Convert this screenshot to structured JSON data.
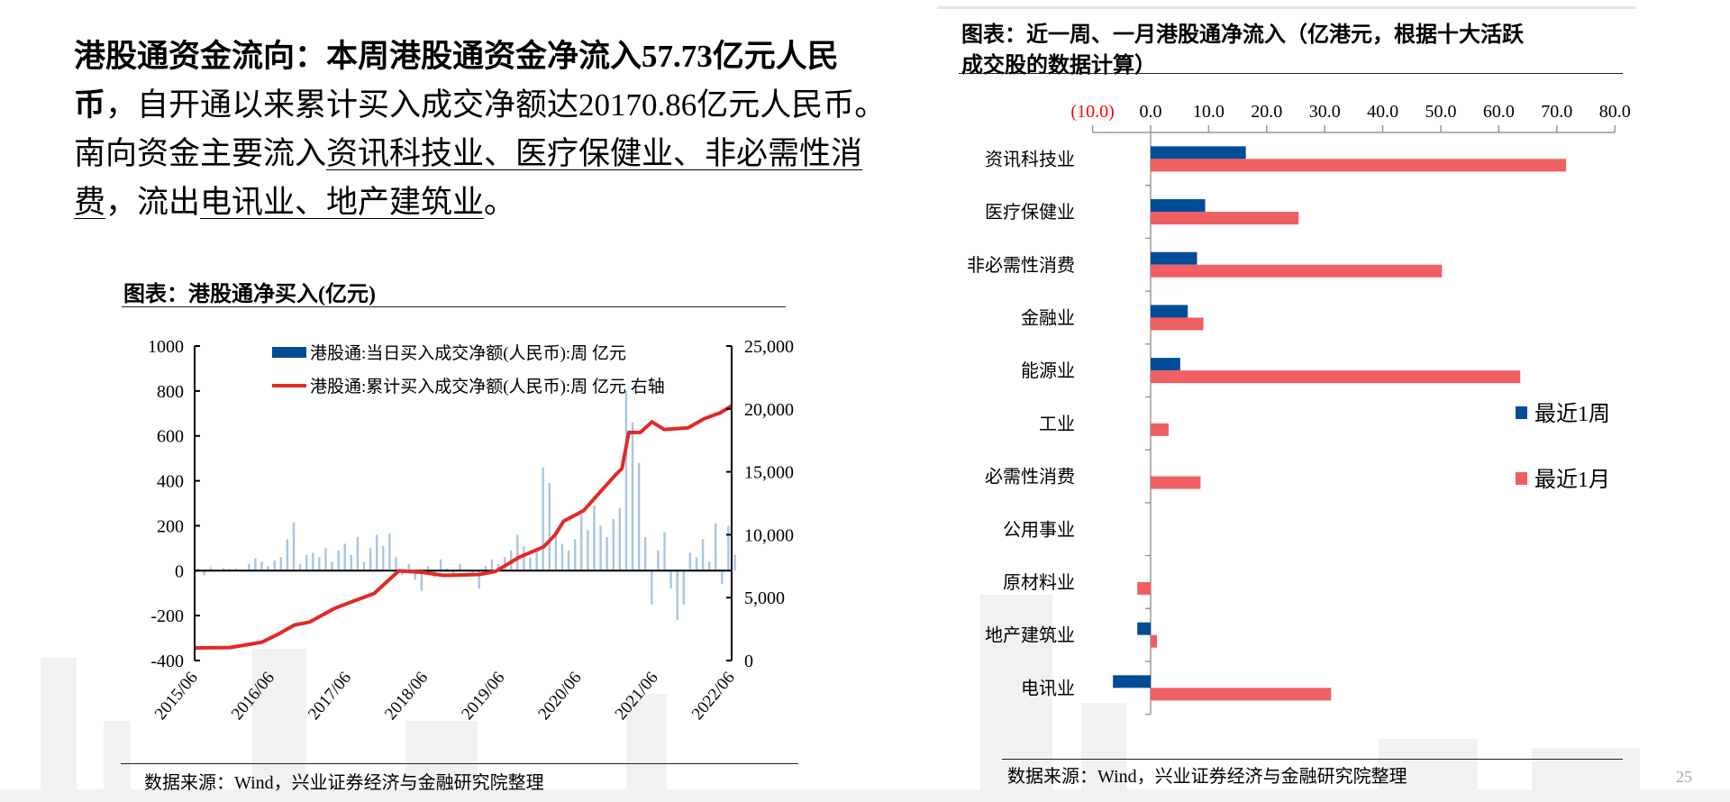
{
  "paragraph": {
    "lines": [
      [
        {
          "t": "港股通资金流向：本周港股通资金净流入57.73亿元人民",
          "style": "b"
        }
      ],
      [
        {
          "t": "币",
          "style": "b"
        },
        {
          "t": "，自开通以来累计买入成交净额达20170.86亿元人民币。",
          "style": ""
        }
      ],
      [
        {
          "t": "南向资金主要流入",
          "style": ""
        },
        {
          "t": "资讯科技业、医疗保健业、非必需性消",
          "style": "u"
        }
      ],
      [
        {
          "t": "费",
          "style": "u"
        },
        {
          "t": "，流出",
          "style": ""
        },
        {
          "t": "电讯业、地产建筑业",
          "style": "u"
        },
        {
          "t": "。",
          "style": ""
        }
      ]
    ]
  },
  "left_chart_title": "图表：港股通净买入(亿元)",
  "right_chart_title_line1": "图表：近一周、一月港股通净流入（亿港元，根据十大活跃",
  "right_chart_title_line2": "成交股的数据计算）",
  "source_left": "数据来源：Wind，兴业证券经济与金融研究院整理",
  "source_right": "数据来源：Wind，兴业证券经济与金融研究院整理",
  "page_number": "25",
  "colors": {
    "blue": "#004C97",
    "red": "#E12A27",
    "light_blue": "#A9C4E4",
    "pink": "#EF5F61",
    "negative_label": "#FF0000"
  },
  "chart_data": [
    {
      "type": "bar+line",
      "title": "",
      "x_tick_labels": [
        "2015/06",
        "2016/06",
        "2017/06",
        "2018/06",
        "2019/06",
        "2020/06",
        "2021/06",
        "2022/06"
      ],
      "ylim_left": [
        -400,
        1000
      ],
      "y_ticks_left": [
        "1000",
        "800",
        "600",
        "400",
        "200",
        "0",
        "-200",
        "-400"
      ],
      "ylim_right": [
        0,
        25000
      ],
      "y_ticks_right": [
        "25,000",
        "20,000",
        "15,000",
        "10,000",
        "5,000",
        "0"
      ],
      "legend_placement": "top",
      "series": [
        {
          "name": "港股通:当日买入成交净额(人民币):周 亿元",
          "type": "bar",
          "axis": "left",
          "x_start": "2015/07",
          "x_step": "month",
          "values": [
            10,
            -20,
            15,
            5,
            12,
            8,
            10,
            5,
            30,
            55,
            40,
            20,
            45,
            60,
            140,
            215,
            30,
            70,
            80,
            60,
            100,
            40,
            90,
            120,
            70,
            150,
            40,
            100,
            160,
            110,
            165,
            60,
            -20,
            30,
            -40,
            -90,
            20,
            -30,
            50,
            10,
            -20,
            30,
            5,
            -10,
            -80,
            20,
            50,
            30,
            60,
            90,
            160,
            110,
            60,
            90,
            460,
            390,
            180,
            120,
            90,
            140,
            250,
            180,
            290,
            200,
            150,
            230,
            280,
            800,
            660,
            480,
            150,
            -150,
            90,
            170,
            -80,
            -220,
            -150,
            80,
            60,
            140,
            40,
            210,
            -60,
            200,
            70
          ]
        },
        {
          "name": "港股通:累计买入成交净额(人民币):周 亿元 右轴",
          "type": "line",
          "axis": "right",
          "points": [
            [
              2015.5,
              1000
            ],
            [
              2015.96,
              1030
            ],
            [
              2016.38,
              1460
            ],
            [
              2016.59,
              2100
            ],
            [
              2016.8,
              2820
            ],
            [
              2017.0,
              3060
            ],
            [
              2017.32,
              4140
            ],
            [
              2017.63,
              4860
            ],
            [
              2017.84,
              5330
            ],
            [
              2018.16,
              7130
            ],
            [
              2018.47,
              7010
            ],
            [
              2018.74,
              6770
            ],
            [
              2019.21,
              6840
            ],
            [
              2019.42,
              7080
            ],
            [
              2019.73,
              8210
            ],
            [
              2020.05,
              9040
            ],
            [
              2020.2,
              10000
            ],
            [
              2020.31,
              11080
            ],
            [
              2020.57,
              11910
            ],
            [
              2020.78,
              13350
            ],
            [
              2020.99,
              14780
            ],
            [
              2021.07,
              15260
            ],
            [
              2021.16,
              18130
            ],
            [
              2021.31,
              18130
            ],
            [
              2021.46,
              18970
            ],
            [
              2021.62,
              18370
            ],
            [
              2021.93,
              18490
            ],
            [
              2022.14,
              19210
            ],
            [
              2022.35,
              19690
            ],
            [
              2022.5,
              20240
            ]
          ]
        }
      ]
    },
    {
      "type": "bar",
      "orientation": "horizontal",
      "title": "图表：近一周、一月港股通净流入（亿港元，根据十大活跃成交股的数据计算）",
      "categories": [
        "资讯科技业",
        "医疗保健业",
        "非必需性消费",
        "金融业",
        "能源业",
        "工业",
        "必需性消费",
        "公用事业",
        "原材料业",
        "地产建筑业",
        "电讯业"
      ],
      "xlim": [
        -10,
        80
      ],
      "x_tick_labels": [
        "(10.0)",
        "0.0",
        "10.0",
        "20.0",
        "30.0",
        "40.0",
        "50.0",
        "60.0",
        "70.0",
        "80.0"
      ],
      "legend_placement": "right",
      "series": [
        {
          "name": "最近1周",
          "values": [
            16.4,
            9.4,
            8.0,
            6.4,
            5.1,
            0,
            0,
            0,
            0,
            -2.3,
            -6.5
          ]
        },
        {
          "name": "最近1月",
          "values": [
            71.6,
            25.5,
            50.2,
            9.1,
            63.7,
            3.1,
            8.6,
            0,
            -2.3,
            1.1,
            31.1
          ]
        }
      ]
    }
  ]
}
